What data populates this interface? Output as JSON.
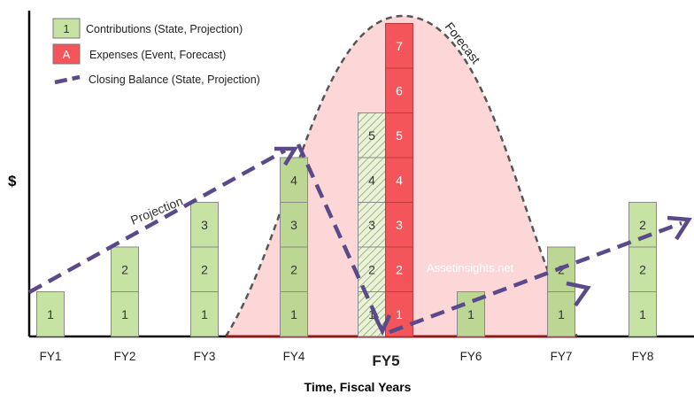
{
  "legend": {
    "contributions_label": "Contributions (State, Projection)",
    "contributions_swatch_text": "1",
    "expenses_label": "Expenses (Event, Forecast)",
    "expenses_swatch_text": "A",
    "closing_balance_label": "Closing Balance (State, Projection)"
  },
  "labels": {
    "y_axis": "$",
    "x_axis": "Time, Fiscal Years",
    "projection": "Projection",
    "forecast": "Forecast",
    "watermark": "Assetinsights.net"
  },
  "colors": {
    "contribution": "#c6e3a4",
    "contribution_shaded": "#bcd694",
    "expense": "#f4555a",
    "forecast_fill": "#fdd7d7",
    "balance_line": "#5b4a8a",
    "forecast_curve": "#555555"
  },
  "chart_data": {
    "type": "bar",
    "categories": [
      "FY1",
      "FY2",
      "FY3",
      "FY4",
      "FY5",
      "FY6",
      "FY7",
      "FY8"
    ],
    "emphasized_category": "FY5",
    "contributions": [
      {
        "category": "FY1",
        "blocks": [
          "1"
        ]
      },
      {
        "category": "FY2",
        "blocks": [
          "1",
          "2"
        ]
      },
      {
        "category": "FY3",
        "blocks": [
          "1",
          "2",
          "3"
        ]
      },
      {
        "category": "FY4",
        "blocks": [
          "1",
          "2",
          "3",
          "4"
        ]
      },
      {
        "category": "FY5",
        "blocks": [
          "1",
          "2",
          "3",
          "4",
          "5"
        ],
        "hatched": true
      },
      {
        "category": "FY6",
        "blocks": [
          "1"
        ]
      },
      {
        "category": "FY7",
        "blocks": [
          "1",
          "2"
        ]
      },
      {
        "category": "FY8",
        "blocks": [
          "1",
          "2",
          "2"
        ]
      }
    ],
    "expenses": [
      {
        "category": "FY5",
        "blocks": [
          "1",
          "2",
          "3",
          "4",
          "5",
          "6",
          "7"
        ]
      }
    ],
    "closing_balance_projection": [
      {
        "x": "FY0.5",
        "y": 1
      },
      {
        "x": "FY4",
        "y": 4.3
      },
      {
        "x": "FY5",
        "y": 0
      },
      {
        "x": "FY8.5",
        "y": 2.7
      }
    ],
    "forecast_peak": "FY5",
    "legend_position": "top-left",
    "grid": false
  }
}
